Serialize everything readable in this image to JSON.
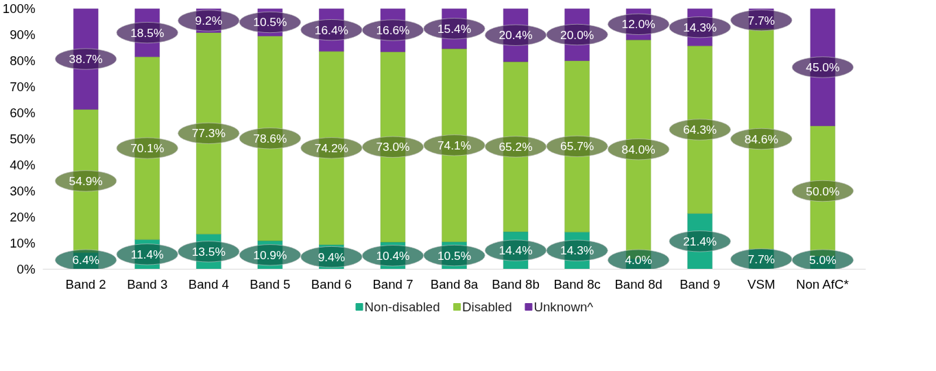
{
  "chart_data": {
    "type": "bar",
    "stacked": true,
    "categories": [
      "Band 2",
      "Band 3",
      "Band 4",
      "Band 5",
      "Band 6",
      "Band 7",
      "Band 8a",
      "Band 8b",
      "Band 8c",
      "Band 8d",
      "Band 9",
      "VSM",
      "Non AfC*"
    ],
    "series": [
      {
        "name": "Non-disabled",
        "color": "#1aae88",
        "values": [
          6.4,
          11.4,
          13.5,
          10.9,
          9.4,
          10.4,
          10.5,
          14.4,
          14.3,
          4.0,
          21.4,
          7.7,
          5.0
        ],
        "value_labels": [
          "6.4%",
          "11.4%",
          "13.5%",
          "10.9%",
          "9.4%",
          "10.4%",
          "10.5%",
          "14.4%",
          "14.3%",
          "4.0%",
          "21.4%",
          "7.7%",
          "5.0%"
        ]
      },
      {
        "name": "Disabled",
        "color": "#92c83e",
        "values": [
          54.9,
          70.1,
          77.3,
          78.6,
          74.2,
          73.0,
          74.1,
          65.2,
          65.7,
          84.0,
          64.3,
          84.6,
          50.0
        ],
        "value_labels": [
          "54.9%",
          "70.1%",
          "77.3%",
          "78.6%",
          "74.2%",
          "73.0%",
          "74.1%",
          "65.2%",
          "65.7%",
          "84.0%",
          "64.3%",
          "84.6%",
          "50.0%"
        ]
      },
      {
        "name": "Unknown^",
        "color": "#7030a0",
        "values": [
          38.7,
          18.5,
          9.2,
          10.5,
          16.4,
          16.6,
          15.4,
          20.4,
          20.0,
          12.0,
          14.3,
          7.7,
          45.0
        ],
        "value_labels": [
          "38.7%",
          "18.5%",
          "9.2%",
          "10.5%",
          "16.4%",
          "16.6%",
          "15.4%",
          "20.4%",
          "20.0%",
          "12.0%",
          "14.3%",
          "7.7%",
          "45.0%"
        ]
      }
    ],
    "ylim": [
      0,
      100
    ],
    "yticks": [
      {
        "value": 0,
        "label": "0%"
      },
      {
        "value": 10,
        "label": "10%"
      },
      {
        "value": 20,
        "label": "20%"
      },
      {
        "value": 30,
        "label": "30%"
      },
      {
        "value": 40,
        "label": "40%"
      },
      {
        "value": 50,
        "label": "50%"
      },
      {
        "value": 60,
        "label": "60%"
      },
      {
        "value": 70,
        "label": "70%"
      },
      {
        "value": 80,
        "label": "80%"
      },
      {
        "value": 90,
        "label": "90%"
      },
      {
        "value": 100,
        "label": "100%"
      }
    ],
    "grid": false,
    "legend": "bottom"
  }
}
